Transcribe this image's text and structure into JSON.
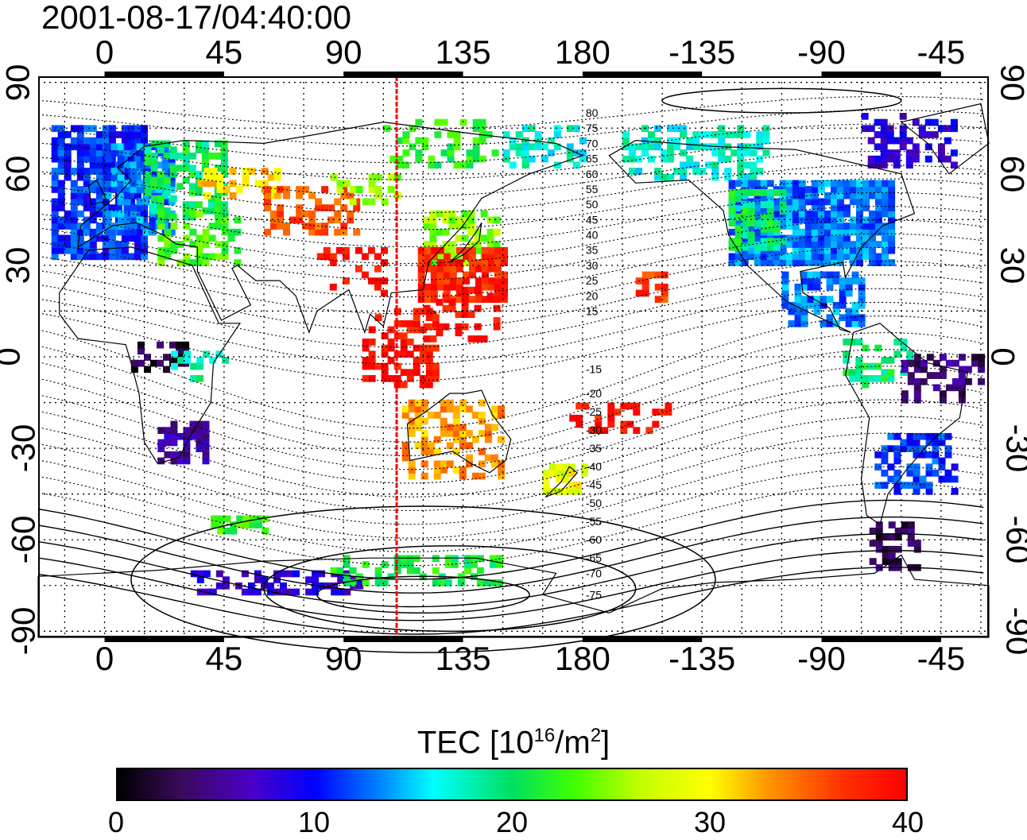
{
  "header": {
    "timestamp": "2001-08-17/04:40:00"
  },
  "map": {
    "lon_ticks_top": [
      "0",
      "45",
      "90",
      "135",
      "180",
      "-135",
      "-90",
      "-45"
    ],
    "lon_ticks_bottom": [
      "0",
      "45",
      "90",
      "135",
      "180",
      "-135",
      "-90",
      "-45"
    ],
    "lon_tick_values": [
      0,
      45,
      90,
      135,
      180,
      225,
      270,
      315
    ],
    "lat_ticks": [
      "90",
      "60",
      "30",
      "0",
      "-30",
      "-60",
      "-90"
    ],
    "lat_tick_values": [
      90,
      60,
      30,
      0,
      -30,
      -60,
      -90
    ],
    "lon_range": [
      -25,
      333
    ],
    "lat_range": [
      -92,
      92
    ],
    "grid": "dotted 15 deg",
    "marker_longitude": 110,
    "marker_color": "#ff0000",
    "contour_labels": [
      {
        "text": "80",
        "lat": 80
      },
      {
        "text": "75",
        "lat": 75
      },
      {
        "text": "70",
        "lat": 70
      },
      {
        "text": "65",
        "lat": 65
      },
      {
        "text": "60",
        "lat": 60
      },
      {
        "text": "55",
        "lat": 55
      },
      {
        "text": "50",
        "lat": 50
      },
      {
        "text": "45",
        "lat": 45
      },
      {
        "text": "40",
        "lat": 40
      },
      {
        "text": "35",
        "lat": 35
      },
      {
        "text": "30",
        "lat": 30
      },
      {
        "text": "25",
        "lat": 25
      },
      {
        "text": "20",
        "lat": 20
      },
      {
        "text": "15",
        "lat": 15
      },
      {
        "text": "-15",
        "lat": -4
      },
      {
        "text": "-20",
        "lat": -12
      },
      {
        "text": "-25",
        "lat": -18
      },
      {
        "text": "-30",
        "lat": -24
      },
      {
        "text": "-35",
        "lat": -30
      },
      {
        "text": "-40",
        "lat": -36
      },
      {
        "text": "-45",
        "lat": -42
      },
      {
        "text": "-50",
        "lat": -48
      },
      {
        "text": "-55",
        "lat": -54
      },
      {
        "text": "-60",
        "lat": -60
      },
      {
        "text": "-65",
        "lat": -66
      },
      {
        "text": "-70",
        "lat": -71
      },
      {
        "text": "-75",
        "lat": -78
      }
    ],
    "contour_label_lon": 180,
    "tec_regions": [
      {
        "lon": [
          -20,
          15
        ],
        "lat": [
          32,
          75
        ],
        "tec": 11,
        "density": 0.85
      },
      {
        "lon": [
          0,
          25
        ],
        "lat": [
          40,
          70
        ],
        "tec": 13,
        "density": 0.7
      },
      {
        "lon": [
          15,
          45
        ],
        "lat": [
          45,
          70
        ],
        "tec": 20,
        "density": 0.6
      },
      {
        "lon": [
          20,
          50
        ],
        "lat": [
          30,
          48
        ],
        "tec": 23,
        "density": 0.55
      },
      {
        "lon": [
          35,
          65
        ],
        "lat": [
          52,
          62
        ],
        "tec": 31,
        "density": 0.5
      },
      {
        "lon": [
          60,
          95
        ],
        "lat": [
          40,
          55
        ],
        "tec": 36,
        "density": 0.5
      },
      {
        "lon": [
          80,
          105
        ],
        "lat": [
          20,
          35
        ],
        "tec": 39,
        "density": 0.35
      },
      {
        "lon": [
          85,
          110
        ],
        "lat": [
          50,
          60
        ],
        "tec": 25,
        "density": 0.4
      },
      {
        "lon": [
          120,
          148
        ],
        "lat": [
          30,
          48
        ],
        "tec": 25,
        "density": 0.7
      },
      {
        "lon": [
          118,
          150
        ],
        "lat": [
          18,
          35
        ],
        "tec": 38,
        "density": 0.8
      },
      {
        "lon": [
          120,
          150
        ],
        "lat": [
          5,
          22
        ],
        "tec": 39,
        "density": 0.3
      },
      {
        "lon": [
          97,
          125
        ],
        "lat": [
          -10,
          15
        ],
        "tec": 39,
        "density": 0.45
      },
      {
        "lon": [
          105,
          148
        ],
        "lat": [
          62,
          78
        ],
        "tec": 22,
        "density": 0.4
      },
      {
        "lon": [
          150,
          180
        ],
        "lat": [
          62,
          76
        ],
        "tec": 17,
        "density": 0.4
      },
      {
        "lon": [
          112,
          150
        ],
        "lat": [
          -40,
          -15
        ],
        "tec": 33,
        "density": 0.45
      },
      {
        "lon": [
          165,
          180
        ],
        "lat": [
          -45,
          -35
        ],
        "tec": 29,
        "density": 0.5
      },
      {
        "lon": [
          175,
          215
        ],
        "lat": [
          -25,
          -15
        ],
        "tec": 39,
        "density": 0.4
      },
      {
        "lon": [
          200,
          210
        ],
        "lat": [
          18,
          28
        ],
        "tec": 37,
        "density": 0.6
      },
      {
        "lon": [
          195,
          250
        ],
        "lat": [
          58,
          75
        ],
        "tec": 17,
        "density": 0.5
      },
      {
        "lon": [
          235,
          295
        ],
        "lat": [
          30,
          58
        ],
        "tec": 13,
        "density": 0.9
      },
      {
        "lon": [
          235,
          255
        ],
        "lat": [
          35,
          55
        ],
        "tec": 20,
        "density": 0.7
      },
      {
        "lon": [
          255,
          285
        ],
        "lat": [
          10,
          28
        ],
        "tec": 13,
        "density": 0.6
      },
      {
        "lon": [
          285,
          320
        ],
        "lat": [
          62,
          80
        ],
        "tec": 8,
        "density": 0.45
      },
      {
        "lon": [
          278,
          302
        ],
        "lat": [
          -10,
          5
        ],
        "tec": 20,
        "density": 0.4
      },
      {
        "lon": [
          300,
          330
        ],
        "lat": [
          -15,
          0
        ],
        "tec": 4,
        "density": 0.45
      },
      {
        "lon": [
          290,
          320
        ],
        "lat": [
          -45,
          -25
        ],
        "tec": 11,
        "density": 0.6
      },
      {
        "lon": [
          288,
          305
        ],
        "lat": [
          -70,
          -55
        ],
        "tec": 3,
        "density": 0.5
      },
      {
        "lon": [
          20,
          38
        ],
        "lat": [
          -35,
          -22
        ],
        "tec": 6,
        "density": 0.6
      },
      {
        "lon": [
          10,
          30
        ],
        "lat": [
          -5,
          5
        ],
        "tec": 2,
        "density": 0.5
      },
      {
        "lon": [
          25,
          45
        ],
        "lat": [
          -8,
          2
        ],
        "tec": 18,
        "density": 0.3
      },
      {
        "lon": [
          30,
          95
        ],
        "lat": [
          -78,
          -70
        ],
        "tec": 8,
        "density": 0.45
      },
      {
        "lon": [
          85,
          148
        ],
        "lat": [
          -75,
          -65
        ],
        "tec": 21,
        "density": 0.4
      },
      {
        "lon": [
          40,
          60
        ],
        "lat": [
          -58,
          -52
        ],
        "tec": 22,
        "density": 0.6
      }
    ]
  },
  "colorbar": {
    "title": "TEC  [10",
    "exponent": "16",
    "unit": "/m",
    "unit_exponent": "2",
    "closing": "]",
    "min": 0,
    "max": 40,
    "labels": [
      "0",
      "10",
      "20",
      "30",
      "40"
    ],
    "label_values": [
      0,
      10,
      20,
      30,
      40
    ],
    "colormap": [
      [
        0.0,
        "#000000"
      ],
      [
        0.08,
        "#3a0a5a"
      ],
      [
        0.17,
        "#4b00c8"
      ],
      [
        0.25,
        "#0000ff"
      ],
      [
        0.33,
        "#0080ff"
      ],
      [
        0.4,
        "#00ffff"
      ],
      [
        0.5,
        "#00e060"
      ],
      [
        0.58,
        "#40ff00"
      ],
      [
        0.66,
        "#c0ff00"
      ],
      [
        0.75,
        "#ffff00"
      ],
      [
        0.83,
        "#ff9000"
      ],
      [
        0.92,
        "#ff3000"
      ],
      [
        1.0,
        "#ff0000"
      ]
    ]
  }
}
